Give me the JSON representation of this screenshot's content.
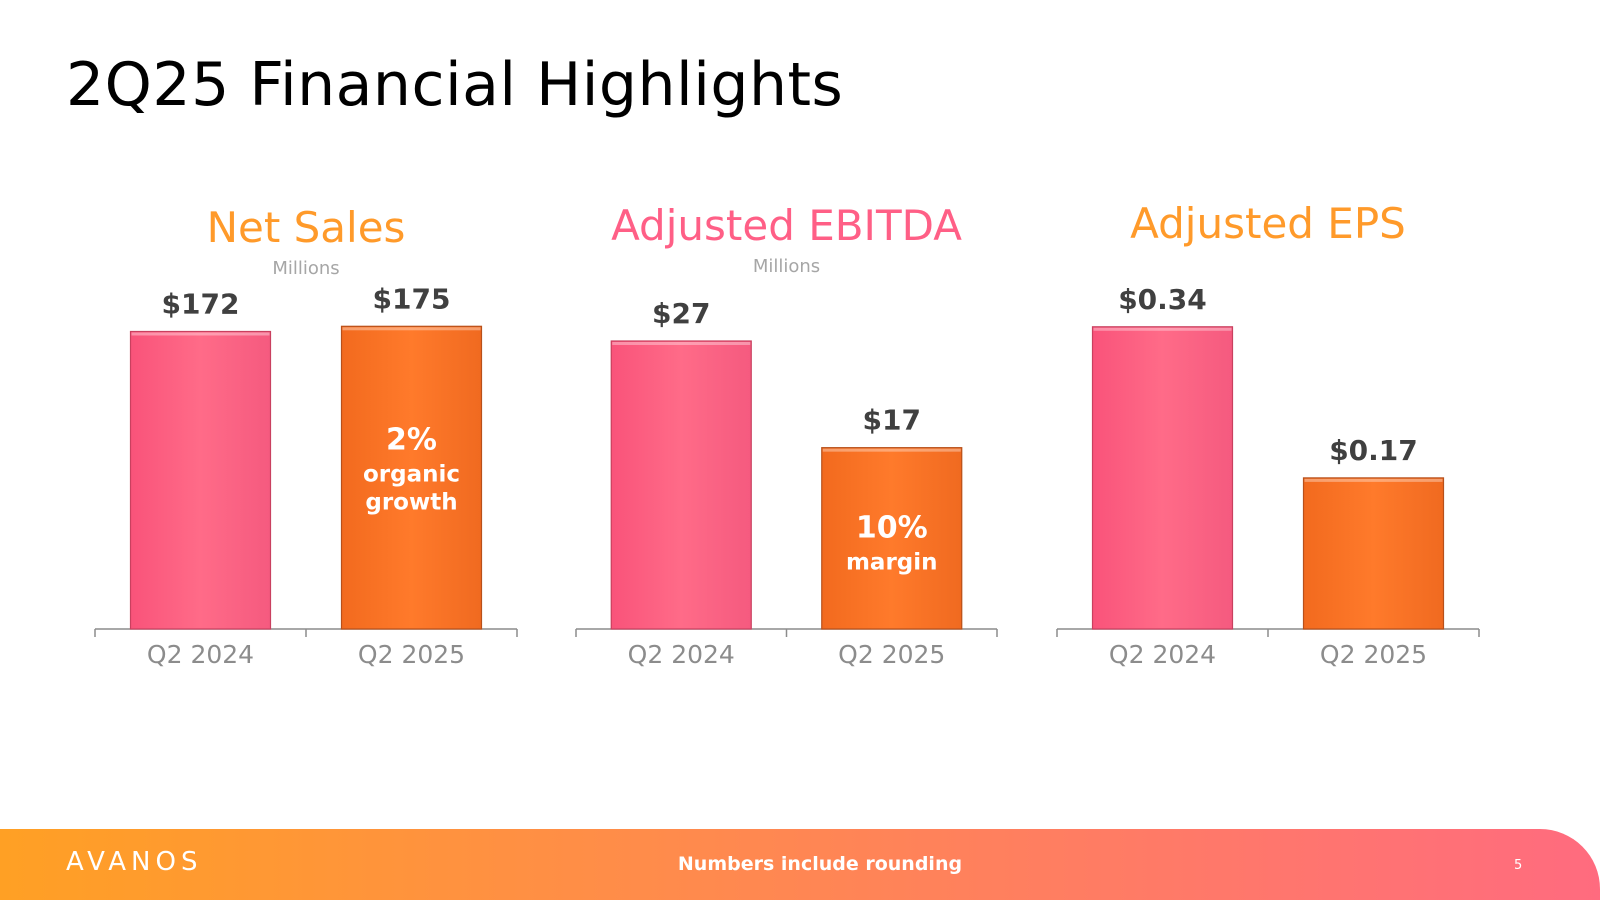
{
  "page": {
    "title": "2Q25 Financial Highlights"
  },
  "colors": {
    "prior_bar": "#ff6b88",
    "current_bar": "#ff7a2b",
    "axis": "#8c8c8c"
  },
  "chart_data": [
    {
      "type": "bar",
      "title": "Net Sales",
      "title_color": "#ff9a2a",
      "units": "Millions",
      "categories": [
        "Q2 2024",
        "Q2 2025"
      ],
      "values": [
        172,
        175
      ],
      "value_labels": [
        "$172",
        "$175"
      ],
      "ylim": [
        0,
        185
      ],
      "inner_label": {
        "big": "2%",
        "lines": [
          "organic",
          "growth"
        ]
      },
      "xlabel": "",
      "ylabel": ""
    },
    {
      "type": "bar",
      "title": "Adjusted EBITDA",
      "title_color": "#ff5f86",
      "units": "Millions",
      "categories": [
        "Q2 2024",
        "Q2 2025"
      ],
      "values": [
        27,
        17
      ],
      "value_labels": [
        "$27",
        "$17"
      ],
      "ylim": [
        0,
        30
      ],
      "inner_label": {
        "big": "10%",
        "lines": [
          "margin"
        ]
      },
      "xlabel": "",
      "ylabel": ""
    },
    {
      "type": "bar",
      "title": "Adjusted EPS",
      "title_color": "#ff9a2a",
      "units": "",
      "categories": [
        "Q2 2024",
        "Q2 2025"
      ],
      "values": [
        0.34,
        0.17
      ],
      "value_labels": [
        "$0.34",
        "$0.17"
      ],
      "ylim": [
        0,
        0.36
      ],
      "inner_label": null,
      "xlabel": "",
      "ylabel": ""
    }
  ],
  "footer": {
    "logo": "AVANOS",
    "note": "Numbers include rounding",
    "page_number": "5"
  }
}
